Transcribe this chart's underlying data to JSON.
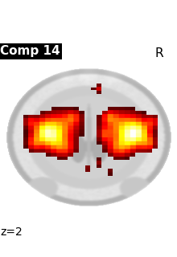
{
  "title": "Comp 14",
  "z_label": "z=2",
  "R_label": "R",
  "bg_color": "#ffffff",
  "title_bg": "#000000",
  "title_color": "#ffffff",
  "label_color": "#000000",
  "figsize": [
    2.2,
    3.2
  ],
  "dpi": 100
}
